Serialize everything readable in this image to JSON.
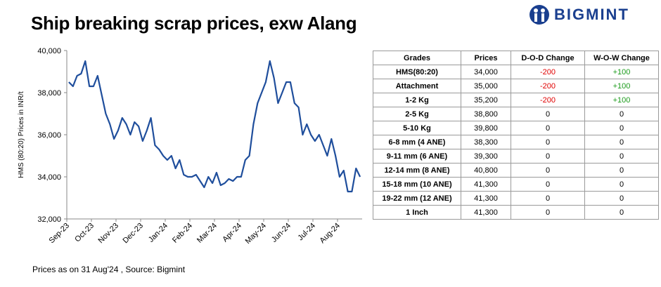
{
  "title": "Ship breaking scrap prices, exw Alang",
  "logo": "BIGMINT",
  "footnote": "Prices as on 31 Aug'24 , Source:  Bigmint",
  "chart_data": {
    "type": "line",
    "ylabel": "HMS (80:20) Prices in INR/t",
    "categories": [
      "Sep-23",
      null,
      null,
      null,
      null,
      null,
      "Oct-23",
      null,
      null,
      null,
      null,
      null,
      "Nov-23",
      null,
      null,
      null,
      null,
      null,
      "Dec-23",
      null,
      null,
      null,
      null,
      null,
      "Jan-24",
      null,
      null,
      null,
      null,
      null,
      "Feb-24",
      null,
      null,
      null,
      null,
      null,
      "Mar-24",
      null,
      null,
      null,
      null,
      null,
      "Apr-24",
      null,
      null,
      null,
      null,
      null,
      "May-24",
      null,
      null,
      null,
      null,
      null,
      "Jun-24",
      null,
      null,
      null,
      null,
      null,
      "Jul-24",
      null,
      null,
      null,
      null,
      null,
      "Aug-24",
      null,
      null,
      null,
      null,
      null
    ],
    "series": [
      {
        "name": "HMS (80:20)",
        "color": "#1f4e9c",
        "values": [
          38500,
          38300,
          38800,
          38900,
          39500,
          38300,
          38300,
          38800,
          37900,
          37000,
          36500,
          35800,
          36200,
          36800,
          36500,
          36000,
          36600,
          36400,
          35700,
          36200,
          36800,
          35500,
          35300,
          35000,
          34800,
          35000,
          34400,
          34800,
          34100,
          34000,
          34000,
          34100,
          33800,
          33500,
          34000,
          33700,
          34200,
          33600,
          33700,
          33900,
          33800,
          34000,
          34000,
          34800,
          35000,
          36500,
          37500,
          38000,
          38500,
          39500,
          38700,
          37500,
          38000,
          38500,
          38500,
          37500,
          37300,
          36000,
          36500,
          36000,
          35700,
          36000,
          35500,
          35000,
          35800,
          35000,
          34000,
          34300,
          33300,
          33300,
          34400,
          34000
        ]
      }
    ],
    "ylim": [
      32000,
      40000
    ],
    "yticks": [
      {
        "value": 32000,
        "label": "32,000"
      },
      {
        "value": 34000,
        "label": "34,000"
      },
      {
        "value": 36000,
        "label": "36,000"
      },
      {
        "value": 38000,
        "label": "38,000"
      },
      {
        "value": 40000,
        "label": "40,000"
      }
    ]
  },
  "table": {
    "header": [
      "Grades",
      "Prices",
      "D-O-D Change",
      "W-O-W Change"
    ],
    "rows": [
      [
        "HMS(80:20)",
        "34,000",
        "-200",
        "+100"
      ],
      [
        "Attachment",
        "35,000",
        "-200",
        "+100"
      ],
      [
        "1-2 Kg",
        "35,200",
        "-200",
        "+100"
      ],
      [
        "2-5 Kg",
        "38,800",
        "0",
        "0"
      ],
      [
        "5-10 Kg",
        "39,800",
        "0",
        "0"
      ],
      [
        "6-8 mm (4 ANE)",
        "38,300",
        "0",
        "0"
      ],
      [
        "9-11 mm (6 ANE)",
        "39,300",
        "0",
        "0"
      ],
      [
        "12-14 mm (8 ANE)",
        "40,800",
        "0",
        "0"
      ],
      [
        "15-18 mm (10 ANE)",
        "41,300",
        "0",
        "0"
      ],
      [
        "19-22 mm (12 ANE)",
        "41,300",
        "0",
        "0"
      ],
      [
        "1 Inch",
        "41,300",
        "0",
        "0"
      ]
    ]
  }
}
